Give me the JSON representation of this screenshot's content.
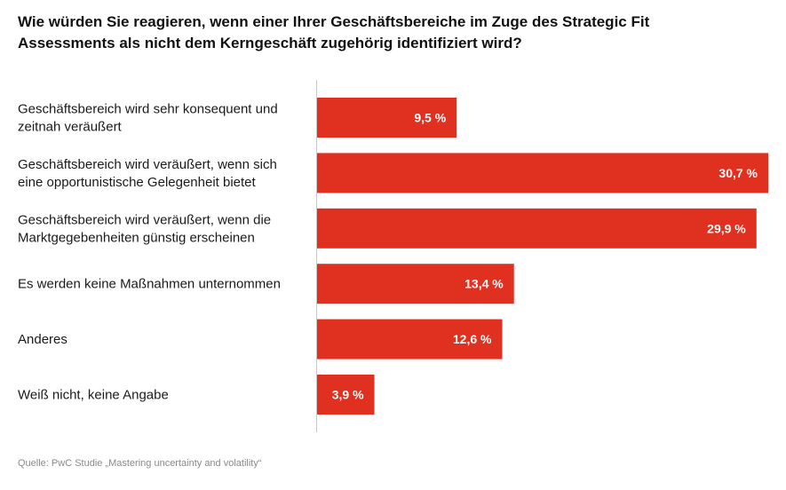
{
  "title": "Wie würden Sie reagieren, wenn einer Ihrer Geschäftsbereiche im Zuge des Strategic Fit Assessments als nicht dem Kerngeschäft zugehörig identifiziert wird?",
  "source": "Quelle: PwC Studie „Mastering uncertainty and volatility“",
  "colors": {
    "bar": "#e03020",
    "bar_label": "#ffffff",
    "axis": "#c8c8c8",
    "text": "#1a1a1a"
  },
  "chart_data": {
    "type": "bar",
    "orientation": "horizontal",
    "categories": [
      [
        "Geschäftsbereich wird sehr konsequent und",
        "zeitnah veräußert"
      ],
      [
        "Geschäftsbereich wird veräußert, wenn sich",
        "eine opportunistische Gelegenheit bietet"
      ],
      [
        "Geschäftsbereich wird veräußert, wenn die",
        "Marktgegebenheiten günstig erscheinen"
      ],
      [
        "Es werden keine Maßnahmen unternommen"
      ],
      [
        "Anderes"
      ],
      [
        "Weiß nicht, keine Angabe"
      ]
    ],
    "values": [
      9.5,
      30.7,
      29.9,
      13.4,
      12.6,
      3.9
    ],
    "value_labels": [
      "9,5 %",
      "30,7 %",
      "29,9 %",
      "13,4 %",
      "12,6 %",
      "3,9 %"
    ],
    "xlim": [
      0,
      30.7
    ],
    "grid": false,
    "legend": "none"
  }
}
